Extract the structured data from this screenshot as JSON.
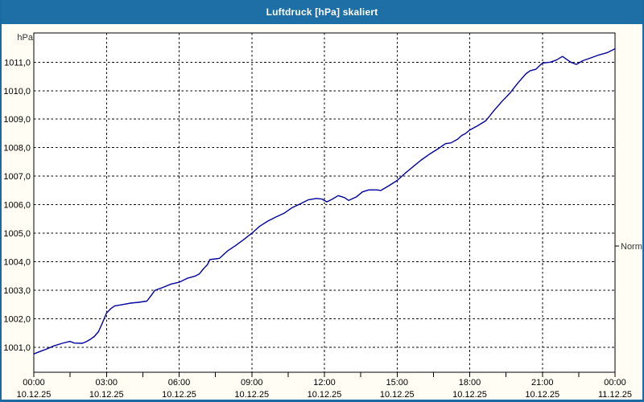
{
  "window": {
    "title": "Luftdruck [hPa] skaliert"
  },
  "colors": {
    "titlebar_bg": "#1d6fa6",
    "window_border": "#1a6ba3",
    "content_bg": "#fffdf4",
    "plot_bg": "#ffffff",
    "grid": "#000000",
    "axis_text": "#000000",
    "unit_text": "#333333",
    "line": "#0000a0",
    "title_text": "#ffffff"
  },
  "chart_data": {
    "type": "line",
    "title": "Luftdruck [hPa] skaliert",
    "ylabel": "hPa",
    "xlabel": "",
    "x_unit": "hours",
    "xlim": [
      0,
      24
    ],
    "ylim": [
      1000.1,
      1012.0
    ],
    "grid": "dashed",
    "legend_position": "none",
    "y_ticks": [
      {
        "value": 1001,
        "label": "1001,0"
      },
      {
        "value": 1002,
        "label": "1002,0"
      },
      {
        "value": 1003,
        "label": "1003,0"
      },
      {
        "value": 1004,
        "label": "1004,0"
      },
      {
        "value": 1005,
        "label": "1005,0"
      },
      {
        "value": 1006,
        "label": "1006,0"
      },
      {
        "value": 1007,
        "label": "1007,0"
      },
      {
        "value": 1008,
        "label": "1008,0"
      },
      {
        "value": 1009,
        "label": "1009,0"
      },
      {
        "value": 1010,
        "label": "1010,0"
      },
      {
        "value": 1011,
        "label": "1011,0"
      }
    ],
    "x_ticks": [
      {
        "hour": 0,
        "time": "00:00",
        "date": "10.12.25"
      },
      {
        "hour": 3,
        "time": "03:00",
        "date": "10.12.25"
      },
      {
        "hour": 6,
        "time": "06:00",
        "date": "10.12.25"
      },
      {
        "hour": 9,
        "time": "09:00",
        "date": "10.12.25"
      },
      {
        "hour": 12,
        "time": "12:00",
        "date": "10.12.25"
      },
      {
        "hour": 15,
        "time": "15:00",
        "date": "10.12.25"
      },
      {
        "hour": 18,
        "time": "18:00",
        "date": "10.12.25"
      },
      {
        "hour": 21,
        "time": "21:00",
        "date": "10.12.25"
      },
      {
        "hour": 24,
        "time": "00:00",
        "date": "11.12.25"
      }
    ],
    "minor_tick_hours": [
      1.5,
      4.5,
      7.5,
      10.5,
      13.5,
      16.5,
      19.5,
      22.5
    ],
    "annotations": [
      {
        "label": "Normal",
        "value": 1004.55,
        "side": "right"
      }
    ],
    "series": [
      {
        "name": "Luftdruck [hPa] skaliert",
        "color": "#0000a0",
        "points": [
          [
            0,
            1000.77
          ],
          [
            0.33,
            1000.88
          ],
          [
            0.5,
            1000.93
          ],
          [
            0.83,
            1001.05
          ],
          [
            1.17,
            1001.14
          ],
          [
            1.5,
            1001.21
          ],
          [
            1.67,
            1001.15
          ],
          [
            2,
            1001.14
          ],
          [
            2.17,
            1001.2
          ],
          [
            2.33,
            1001.28
          ],
          [
            2.5,
            1001.38
          ],
          [
            2.67,
            1001.55
          ],
          [
            2.83,
            1001.85
          ],
          [
            3,
            1002.2
          ],
          [
            3.17,
            1002.35
          ],
          [
            3.33,
            1002.45
          ],
          [
            3.67,
            1002.5
          ],
          [
            4,
            1002.55
          ],
          [
            4.33,
            1002.58
          ],
          [
            4.67,
            1002.62
          ],
          [
            4.83,
            1002.8
          ],
          [
            5,
            1003.0
          ],
          [
            5.33,
            1003.1
          ],
          [
            5.67,
            1003.22
          ],
          [
            6,
            1003.28
          ],
          [
            6.33,
            1003.42
          ],
          [
            6.67,
            1003.5
          ],
          [
            6.83,
            1003.57
          ],
          [
            7,
            1003.75
          ],
          [
            7.17,
            1003.9
          ],
          [
            7.27,
            1004.08
          ],
          [
            7.5,
            1004.1
          ],
          [
            7.67,
            1004.12
          ],
          [
            7.83,
            1004.25
          ],
          [
            8,
            1004.38
          ],
          [
            8.33,
            1004.57
          ],
          [
            8.67,
            1004.78
          ],
          [
            9,
            1005.0
          ],
          [
            9.33,
            1005.25
          ],
          [
            9.67,
            1005.43
          ],
          [
            10,
            1005.57
          ],
          [
            10.33,
            1005.7
          ],
          [
            10.67,
            1005.9
          ],
          [
            11,
            1006.03
          ],
          [
            11.33,
            1006.17
          ],
          [
            11.67,
            1006.22
          ],
          [
            11.9,
            1006.2
          ],
          [
            12.1,
            1006.1
          ],
          [
            12.33,
            1006.2
          ],
          [
            12.57,
            1006.32
          ],
          [
            12.83,
            1006.25
          ],
          [
            13,
            1006.15
          ],
          [
            13.33,
            1006.28
          ],
          [
            13.57,
            1006.45
          ],
          [
            13.83,
            1006.52
          ],
          [
            14.17,
            1006.52
          ],
          [
            14.33,
            1006.5
          ],
          [
            14.67,
            1006.67
          ],
          [
            15,
            1006.85
          ],
          [
            15.33,
            1007.1
          ],
          [
            15.67,
            1007.34
          ],
          [
            16,
            1007.57
          ],
          [
            16.33,
            1007.77
          ],
          [
            16.67,
            1007.95
          ],
          [
            17,
            1008.14
          ],
          [
            17.23,
            1008.17
          ],
          [
            17.5,
            1008.3
          ],
          [
            17.67,
            1008.43
          ],
          [
            17.83,
            1008.5
          ],
          [
            18,
            1008.62
          ],
          [
            18.33,
            1008.77
          ],
          [
            18.67,
            1008.95
          ],
          [
            19,
            1009.3
          ],
          [
            19.33,
            1009.62
          ],
          [
            19.67,
            1009.92
          ],
          [
            19.83,
            1010.1
          ],
          [
            20,
            1010.28
          ],
          [
            20.33,
            1010.6
          ],
          [
            20.5,
            1010.7
          ],
          [
            20.73,
            1010.75
          ],
          [
            21,
            1010.97
          ],
          [
            21.33,
            1011.0
          ],
          [
            21.57,
            1011.07
          ],
          [
            21.83,
            1011.2
          ],
          [
            22.17,
            1011.0
          ],
          [
            22.4,
            1010.92
          ],
          [
            22.67,
            1011.05
          ],
          [
            23,
            1011.15
          ],
          [
            23.33,
            1011.25
          ],
          [
            23.67,
            1011.33
          ],
          [
            24,
            1011.47
          ]
        ]
      }
    ]
  }
}
